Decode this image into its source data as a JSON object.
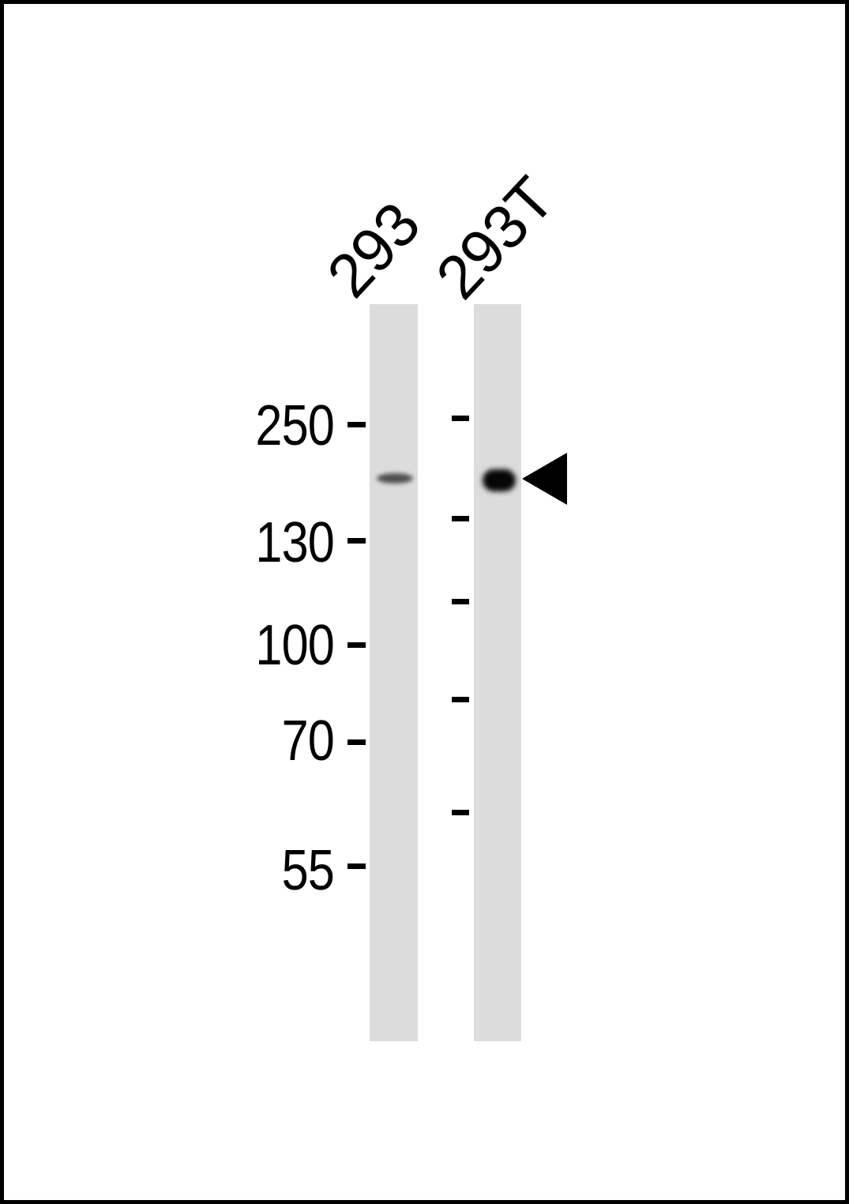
{
  "figure": {
    "type": "western-blot",
    "lanes": [
      {
        "label": "293",
        "band_intensity": "faint"
      },
      {
        "label": "293T",
        "band_intensity": "strong"
      }
    ],
    "markers": [
      {
        "label": "250"
      },
      {
        "label": "130"
      },
      {
        "label": "100"
      },
      {
        "label": "70"
      },
      {
        "label": "55"
      }
    ],
    "ladder_tick_count": 5,
    "annotations": {
      "arrow": "left-pointing solid arrowhead marking the detected band"
    },
    "colors": {
      "page_bg": "#ffffff",
      "frame": "#000000",
      "lane_bg": "#dcdcdc",
      "ink": "#000000",
      "band_faint": "#2f2f2f",
      "band_strong": "#060606"
    }
  }
}
